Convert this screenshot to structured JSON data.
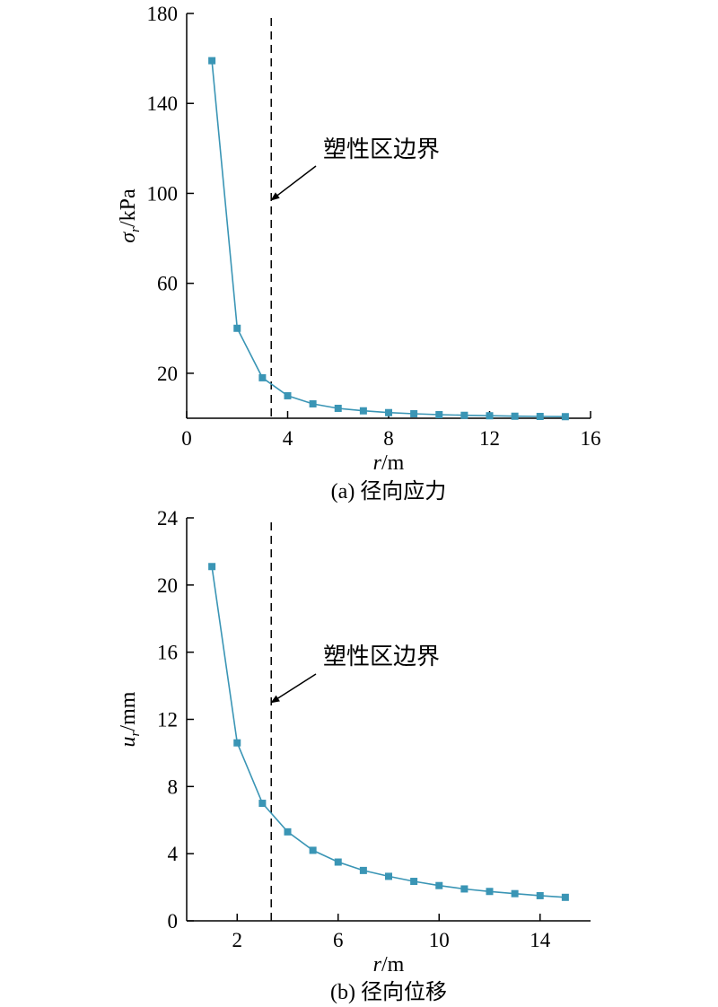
{
  "figure": {
    "captions": [
      "(a) 径向应力",
      "(b) 径向位移"
    ]
  },
  "chart_data": [
    {
      "type": "line",
      "title": "",
      "caption": "(a) 径向应力",
      "xlabel": {
        "var": "r",
        "unit": "/m"
      },
      "ylabel": {
        "var": "σ",
        "sub": "r",
        "unit": "/kPa"
      },
      "xlim": [
        0,
        16
      ],
      "ylim": [
        0,
        180
      ],
      "xticks": [
        0,
        4,
        8,
        12,
        16
      ],
      "yticks": [
        20,
        60,
        100,
        140,
        180
      ],
      "grid": false,
      "series": [
        {
          "color": "#3a95b5",
          "marker": "square",
          "x": [
            1,
            2,
            3,
            4,
            5,
            6,
            7,
            8,
            9,
            10,
            11,
            12,
            13,
            14,
            15
          ],
          "y": [
            159,
            40,
            18,
            10,
            6.4,
            4.4,
            3.3,
            2.5,
            2.0,
            1.6,
            1.3,
            1.1,
            0.9,
            0.8,
            0.7
          ]
        }
      ],
      "boundary": {
        "x": 3.35,
        "style": "dashed"
      },
      "annotation": {
        "text": "塑性区边界",
        "arrow_to": {
          "x": 3.35,
          "y": 97
        }
      }
    },
    {
      "type": "line",
      "title": "",
      "caption": "(b) 径向位移",
      "xlabel": {
        "var": "r",
        "unit": "/m"
      },
      "ylabel": {
        "var": "u",
        "sub": "r",
        "unit": "/mm"
      },
      "xlim": [
        0,
        16
      ],
      "ylim": [
        0,
        24
      ],
      "xticks": [
        2,
        6,
        10,
        14
      ],
      "yticks": [
        0,
        4,
        8,
        12,
        16,
        20,
        24
      ],
      "grid": false,
      "series": [
        {
          "color": "#3a95b5",
          "marker": "square",
          "x": [
            1,
            2,
            3,
            4,
            5,
            6,
            7,
            8,
            9,
            10,
            11,
            12,
            13,
            14,
            15
          ],
          "y": [
            21.1,
            10.6,
            7.0,
            5.3,
            4.2,
            3.5,
            3.0,
            2.65,
            2.35,
            2.1,
            1.9,
            1.75,
            1.62,
            1.5,
            1.4
          ]
        }
      ],
      "boundary": {
        "x": 3.35,
        "style": "dashed"
      },
      "annotation": {
        "text": "塑性区边界",
        "arrow_to": {
          "x": 3.35,
          "y": 13
        }
      }
    }
  ]
}
